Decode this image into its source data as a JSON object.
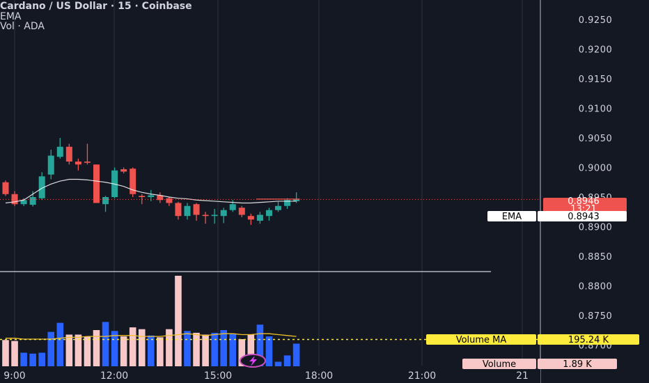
{
  "legend": {
    "title": "Cardano / US Dollar · 15 · Coinbase",
    "ema_label": "EMA",
    "vol_label": "Vol · ADA"
  },
  "price_tag": {
    "value": "0.8946",
    "countdown": "13:21",
    "color": "#ef5350"
  },
  "ema_tag": {
    "label": "EMA",
    "value": "0.8943"
  },
  "volume_ma_tag": {
    "label": "Volume MA",
    "value": "195.24 K",
    "color": "#ffeb3b"
  },
  "volume_tag": {
    "label": "Volume",
    "value": "1.89 K",
    "color": "#f8c8c8"
  },
  "chart_data": {
    "type": "candlestick",
    "x_ticks": [
      "9:00",
      "12:00",
      "15:00",
      "18:00",
      "21:00",
      "21"
    ],
    "y_ticks": [
      "0.9250",
      "0.9200",
      "0.9150",
      "0.9100",
      "0.9050",
      "0.9000",
      "0.8950",
      "0.8900",
      "0.8850",
      "0.8800",
      "0.8750",
      "0.8700"
    ],
    "ylim": [
      0.8665,
      0.9285
    ],
    "colors": {
      "up": "#26a69a",
      "down": "#ef5350",
      "vol_up": "#2962ff",
      "vol_down": "#f8c8c8",
      "ema": "#ffffff",
      "vol_ma": "#f0c02a",
      "grid": "#2a2e39"
    },
    "candles": [
      {
        "t": "08:45",
        "o": 0.8975,
        "h": 0.8978,
        "l": 0.8952,
        "c": 0.8955
      },
      {
        "t": "09:00",
        "o": 0.8955,
        "h": 0.896,
        "l": 0.8935,
        "c": 0.8938
      },
      {
        "t": "09:15",
        "o": 0.8938,
        "h": 0.8948,
        "l": 0.8935,
        "c": 0.8945
      },
      {
        "t": "09:30",
        "o": 0.8937,
        "h": 0.896,
        "l": 0.8934,
        "c": 0.895
      },
      {
        "t": "09:45",
        "o": 0.8948,
        "h": 0.8992,
        "l": 0.8945,
        "c": 0.8985
      },
      {
        "t": "10:00",
        "o": 0.8988,
        "h": 0.903,
        "l": 0.898,
        "c": 0.902
      },
      {
        "t": "10:15",
        "o": 0.9018,
        "h": 0.905,
        "l": 0.9015,
        "c": 0.9035
      },
      {
        "t": "10:30",
        "o": 0.9035,
        "h": 0.904,
        "l": 0.9005,
        "c": 0.901
      },
      {
        "t": "10:45",
        "o": 0.901,
        "h": 0.9015,
        "l": 0.8995,
        "c": 0.9005
      },
      {
        "t": "11:00",
        "o": 0.901,
        "h": 0.904,
        "l": 0.9005,
        "c": 0.9008
      },
      {
        "t": "11:15",
        "o": 0.9005,
        "h": 0.9005,
        "l": 0.894,
        "c": 0.894
      },
      {
        "t": "11:30",
        "o": 0.8938,
        "h": 0.8952,
        "l": 0.8925,
        "c": 0.895
      },
      {
        "t": "11:45",
        "o": 0.895,
        "h": 0.9,
        "l": 0.8948,
        "c": 0.8995
      },
      {
        "t": "12:00",
        "o": 0.8997,
        "h": 0.9,
        "l": 0.899,
        "c": 0.8993
      },
      {
        "t": "12:15",
        "o": 0.8998,
        "h": 0.9,
        "l": 0.895,
        "c": 0.8955
      },
      {
        "t": "12:30",
        "o": 0.8952,
        "h": 0.8955,
        "l": 0.8938,
        "c": 0.895
      },
      {
        "t": "12:45",
        "o": 0.895,
        "h": 0.8962,
        "l": 0.8943,
        "c": 0.8953
      },
      {
        "t": "13:00",
        "o": 0.8953,
        "h": 0.8958,
        "l": 0.894,
        "c": 0.8945
      },
      {
        "t": "13:15",
        "o": 0.8948,
        "h": 0.895,
        "l": 0.8935,
        "c": 0.894
      },
      {
        "t": "13:30",
        "o": 0.894,
        "h": 0.8942,
        "l": 0.8912,
        "c": 0.8918
      },
      {
        "t": "13:45",
        "o": 0.8918,
        "h": 0.894,
        "l": 0.8912,
        "c": 0.8935
      },
      {
        "t": "14:00",
        "o": 0.8938,
        "h": 0.894,
        "l": 0.891,
        "c": 0.892
      },
      {
        "t": "14:15",
        "o": 0.892,
        "h": 0.8925,
        "l": 0.8905,
        "c": 0.8918
      },
      {
        "t": "14:30",
        "o": 0.8918,
        "h": 0.893,
        "l": 0.8905,
        "c": 0.892
      },
      {
        "t": "14:45",
        "o": 0.8918,
        "h": 0.8932,
        "l": 0.8906,
        "c": 0.8928
      },
      {
        "t": "15:00",
        "o": 0.8928,
        "h": 0.8945,
        "l": 0.8925,
        "c": 0.8938
      },
      {
        "t": "15:15",
        "o": 0.8932,
        "h": 0.8935,
        "l": 0.8916,
        "c": 0.892
      },
      {
        "t": "15:30",
        "o": 0.8918,
        "h": 0.8922,
        "l": 0.8903,
        "c": 0.8912
      },
      {
        "t": "15:45",
        "o": 0.891,
        "h": 0.8925,
        "l": 0.8905,
        "c": 0.892
      },
      {
        "t": "16:00",
        "o": 0.8918,
        "h": 0.8932,
        "l": 0.891,
        "c": 0.8928
      },
      {
        "t": "16:15",
        "o": 0.8928,
        "h": 0.8942,
        "l": 0.8925,
        "c": 0.8935
      },
      {
        "t": "16:30",
        "o": 0.8935,
        "h": 0.8948,
        "l": 0.893,
        "c": 0.8945
      },
      {
        "t": "16:45",
        "o": 0.8943,
        "h": 0.8958,
        "l": 0.894,
        "c": 0.8946
      }
    ],
    "ema": [
      0.894,
      0.8942,
      0.8945,
      0.8955,
      0.8965,
      0.8972,
      0.8977,
      0.898,
      0.898,
      0.8979,
      0.8977,
      0.8975,
      0.8972,
      0.8968,
      0.8962,
      0.8958,
      0.8955,
      0.8953,
      0.895,
      0.8948,
      0.8947,
      0.8945,
      0.8944,
      0.8943,
      0.8942,
      0.8941,
      0.894,
      0.894,
      0.8941,
      0.8942,
      0.8943,
      0.8943,
      0.8943
    ],
    "volume": [
      0.29,
      0.28,
      0.15,
      0.14,
      0.15,
      0.38,
      0.48,
      0.35,
      0.35,
      0.33,
      0.4,
      0.49,
      0.39,
      0.33,
      0.43,
      0.41,
      0.34,
      0.32,
      0.41,
      1.0,
      0.39,
      0.37,
      0.35,
      0.37,
      0.4,
      0.36,
      0.3,
      0.35,
      0.46,
      0.33,
      0.05,
      0.12,
      0.25
    ],
    "volume_ma": [
      0.31,
      0.31,
      0.3,
      0.3,
      0.3,
      0.3,
      0.31,
      0.32,
      0.32,
      0.33,
      0.33,
      0.33,
      0.34,
      0.34,
      0.34,
      0.33,
      0.33,
      0.33,
      0.34,
      0.35,
      0.36,
      0.35,
      0.34,
      0.35,
      0.36,
      0.36,
      0.35,
      0.35,
      0.36,
      0.36,
      0.35,
      0.34,
      0.33
    ]
  }
}
